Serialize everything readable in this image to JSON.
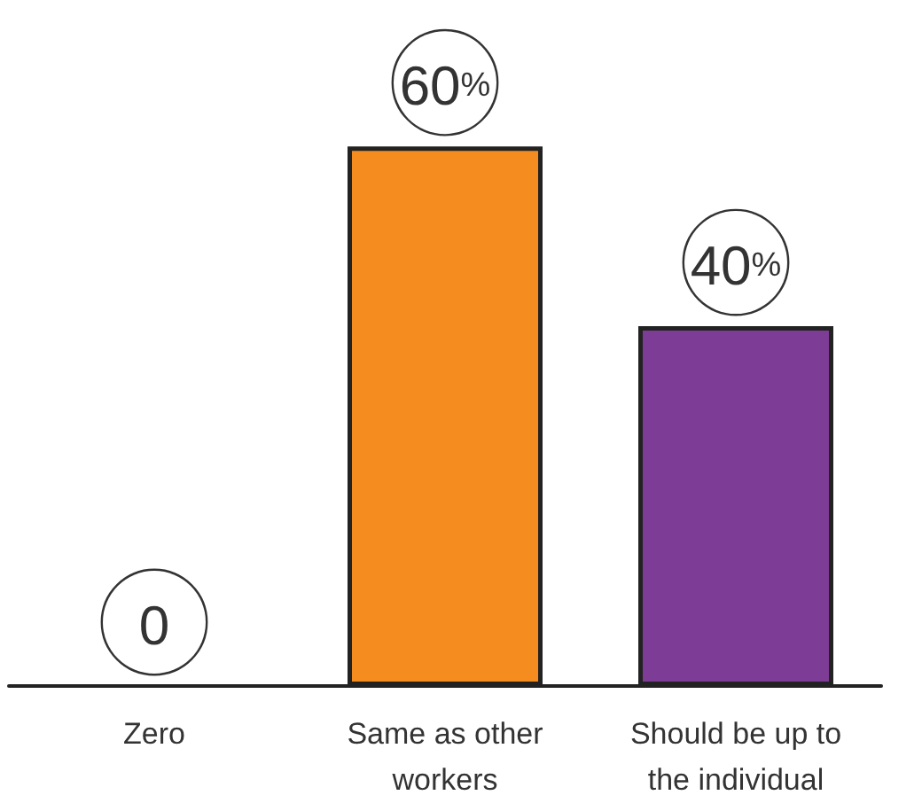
{
  "chart_data": {
    "type": "bar",
    "categories": [
      "Zero",
      "Same as other workers",
      "Should be up to the individual"
    ],
    "values": [
      0,
      60,
      40
    ],
    "colors": [
      null,
      "#f58c1f",
      "#7d3c95"
    ],
    "value_labels": [
      "0",
      "60%",
      "40%"
    ]
  }
}
